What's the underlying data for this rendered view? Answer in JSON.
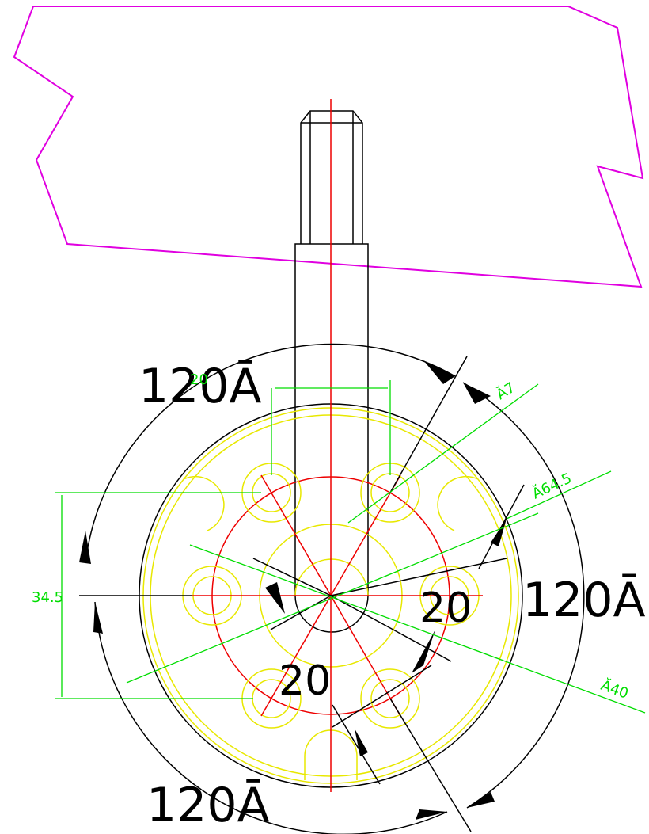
{
  "dimensions": {
    "angle_top": "120Ā",
    "angle_right": "120Ā",
    "angle_bottom": "120Ā",
    "width_top": "20",
    "hole_dia": "Ă7",
    "bolt_circle_dia": "Ă64.5",
    "height_left": "34.5",
    "dim_20_right": "20",
    "dim_20_center": "20",
    "hub_dia": "Ă40"
  }
}
